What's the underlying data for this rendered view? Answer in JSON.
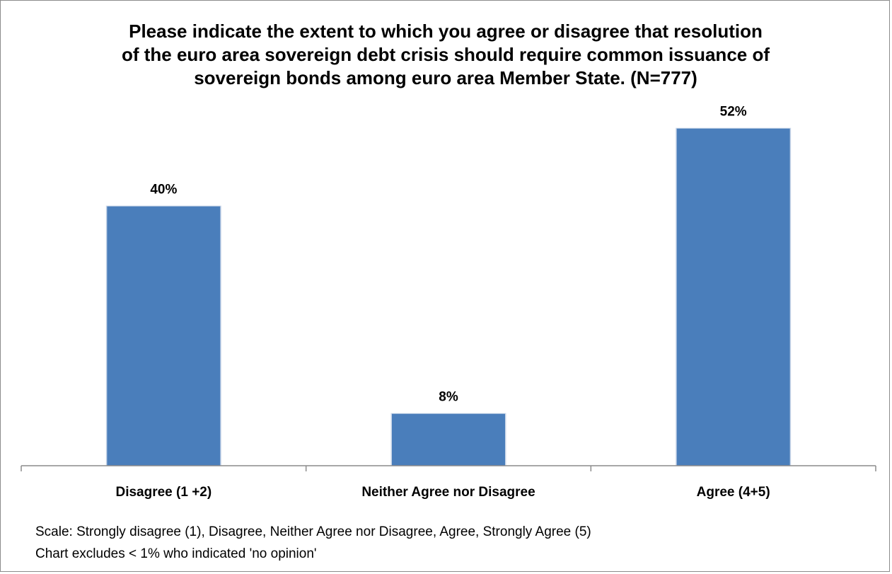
{
  "chart_data": {
    "type": "bar",
    "title_lines": [
      "Please indicate the extent to which you agree or disagree that resolution",
      "of the euro area sovereign debt crisis should require common issuance of",
      "sovereign bonds among euro area Member State. (N=777)"
    ],
    "categories": [
      "Disagree (1 +2)",
      "Neither Agree nor Disagree",
      "Agree (4+5)"
    ],
    "values": [
      40,
      8,
      52
    ],
    "data_labels": [
      "40%",
      "8%",
      "52%"
    ],
    "ylim": [
      0,
      60
    ],
    "grid": false,
    "legend": "none",
    "bar_color": "#4a7ebb"
  },
  "notes": [
    "Scale: Strongly disagree (1), Disagree, Neither Agree nor Disagree, Agree, Strongly Agree (5)",
    "Chart excludes < 1% who indicated 'no opinion'"
  ]
}
